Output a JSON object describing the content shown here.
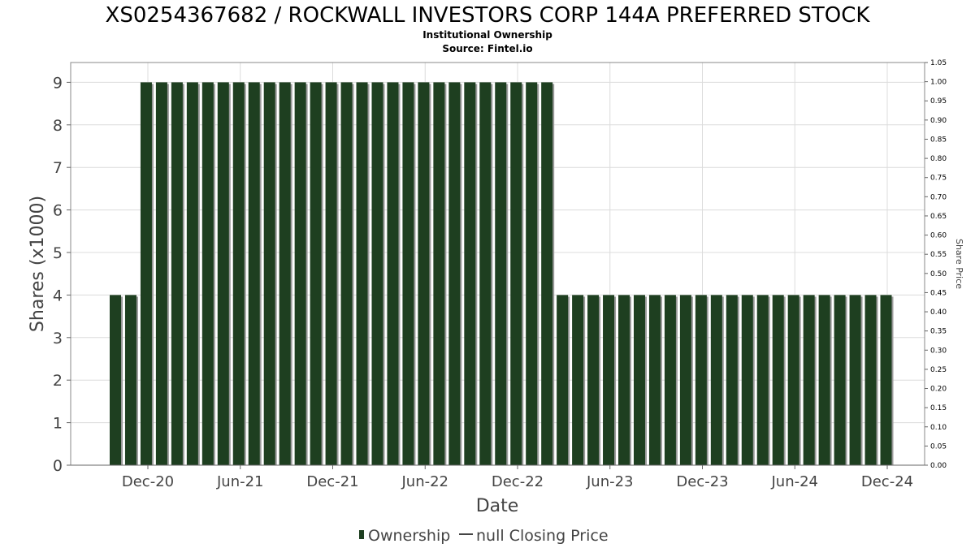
{
  "chart_data": {
    "type": "bar",
    "title": "XS0254367682 / ROCKWALL INVESTORS CORP 144A PREFERRED STOCK",
    "subtitle": "Institutional Ownership",
    "source": "Source: Fintel.io",
    "xlabel": "Date",
    "ylabel": "Shares (x1000)",
    "y2label": "Share Price",
    "ylim": [
      0,
      9.5
    ],
    "y2lim": [
      0,
      1.05
    ],
    "y_ticks": [
      "0",
      "1",
      "2",
      "3",
      "4",
      "5",
      "6",
      "7",
      "8",
      "9"
    ],
    "y2_ticks": [
      "0.00",
      "0.05",
      "0.10",
      "0.15",
      "0.20",
      "0.25",
      "0.30",
      "0.35",
      "0.40",
      "0.45",
      "0.50",
      "0.55",
      "0.60",
      "0.65",
      "0.70",
      "0.75",
      "0.80",
      "0.85",
      "0.90",
      "0.95",
      "1.00",
      "1.05"
    ],
    "x_ticks": [
      "Dec-20",
      "Jun-21",
      "Dec-21",
      "Jun-22",
      "Dec-22",
      "Jun-23",
      "Dec-23",
      "Jun-24",
      "Dec-24"
    ],
    "grid": true,
    "legend_position": "bottom",
    "colors": {
      "ownership": "#1e3f20",
      "shadow": "#9a9a9a",
      "grid": "#dcdcdc"
    },
    "series": [
      {
        "name": "Ownership",
        "values": [
          4,
          4,
          9,
          9,
          9,
          9,
          9,
          9,
          9,
          9,
          9,
          9,
          9,
          9,
          9,
          9,
          9,
          9,
          9,
          9,
          9,
          9,
          9,
          9,
          9,
          9,
          9,
          9,
          9,
          4,
          4,
          4,
          4,
          4,
          4,
          4,
          4,
          4,
          4,
          4,
          4,
          4,
          4,
          4,
          4,
          4,
          4,
          4,
          4,
          4,
          4
        ]
      },
      {
        "name": "null Closing Price",
        "values": []
      }
    ]
  }
}
